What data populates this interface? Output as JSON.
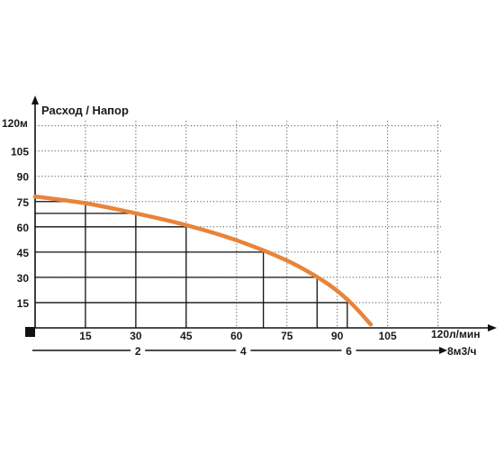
{
  "chart_data": {
    "type": "line",
    "title": "Расход / Напор",
    "y_axis": {
      "unit_label": "120м",
      "ticks": [
        15,
        30,
        45,
        60,
        75,
        90,
        105
      ],
      "ylim": [
        0,
        120
      ]
    },
    "x_axis": {
      "unit_label": "120л/мин",
      "ticks": [
        15,
        30,
        45,
        60,
        75,
        90,
        105
      ],
      "xlim": [
        0,
        120
      ]
    },
    "secondary_x_axis": {
      "unit_label": "8м3/ч",
      "ticks": [
        2,
        4,
        6
      ],
      "xlim": [
        0,
        8
      ]
    },
    "grid": true,
    "series": [
      {
        "color": "#e8843a",
        "x": [
          0,
          15,
          30,
          45,
          60,
          75,
          85,
          90,
          95,
          100
        ],
        "y": [
          78,
          74,
          68,
          61,
          52,
          40,
          29,
          22,
          13,
          2
        ]
      }
    ],
    "guide_points": [
      {
        "x": 15,
        "y": 75
      },
      {
        "x": 30,
        "y": 68
      },
      {
        "x": 45,
        "y": 60
      },
      {
        "x": 68,
        "y": 45
      },
      {
        "x": 84,
        "y": 30
      },
      {
        "x": 93,
        "y": 15
      }
    ]
  }
}
